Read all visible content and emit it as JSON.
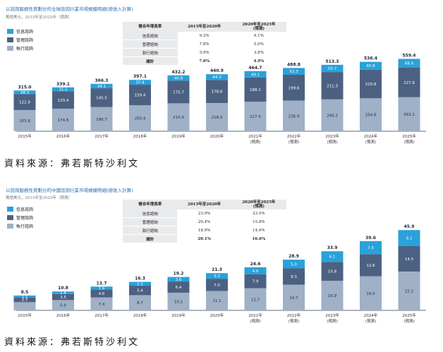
{
  "colors": {
    "info": "#2aa1da",
    "management": "#4c6182",
    "execution": "#9fb0c7",
    "title": "#2a6db0",
    "axis": "#5a6a80"
  },
  "legend": [
    "信息諮詢",
    "管理諮詢",
    "執行諮詢"
  ],
  "source_text": "資料來源：弗若斯特沙利文",
  "table_headers": [
    "複合年增長率",
    "2015年至2020年",
    "2020年至2025年\n(預測)"
  ],
  "chart_data": [
    {
      "type": "bar",
      "stacked": true,
      "title": "以諮詢服務性質劃分的全球諮詢行業市場規模明細(按收入計算)",
      "subtitle": "萬億美元，2015年至2025年（預測）",
      "categories": [
        "2015年",
        "2016年",
        "2017年",
        "2018年",
        "2019年",
        "2020年",
        "2021年\n(預測)",
        "2022年\n(預測)",
        "2023年\n(預測)",
        "2024年\n(預測)",
        "2025年\n(預測)"
      ],
      "series": [
        {
          "name": "執行諮詢",
          "values": [
            163.8,
            174.6,
            186.7,
            200.4,
            215.9,
            218.0,
            227.5,
            236.9,
            246.3,
            254.8,
            263.1
          ]
        },
        {
          "name": "管理諮詢",
          "values": [
            122.9,
            133.4,
            145.5,
            159.4,
            175.7,
            178.6,
            188.1,
            199.6,
            211.3,
            220.8,
            227.9
          ]
        },
        {
          "name": "信息諮詢",
          "values": [
            28.3,
            31.1,
            34.1,
            37.4,
            40.6,
            44.2,
            49.1,
            52.3,
            55.7,
            60.8,
            68.4
          ]
        }
      ],
      "totals": [
        "315.0",
        "339.1",
        "366.3",
        "397.1",
        "432.2",
        "440.9",
        "464.7",
        "488.8",
        "513.3",
        "536.4",
        "559.4"
      ],
      "labels": [
        [
          "163.8",
          "174.6",
          "186.7",
          "200.4",
          "215.9",
          "218.0",
          "227.5",
          "236.9",
          "246.3",
          "254.8",
          "263.1"
        ],
        [
          "122.9",
          "133.4",
          "145.5",
          "159.4",
          "175.7",
          "178.6",
          "188.1",
          "199.6",
          "211.3",
          "220.8",
          "227.9"
        ],
        [
          "28.3",
          "31.1",
          "34.1",
          "37.4",
          "40.6",
          "44.2",
          "49.1",
          "52.3",
          "55.7",
          "60.8",
          "68.4"
        ]
      ],
      "ylim": [
        0,
        600
      ],
      "cagr": [
        {
          "label": "信息諮詢",
          "a": "9.3%",
          "b": "9.1%"
        },
        {
          "label": "管理諮詢",
          "a": "7.8%",
          "b": "5.0%"
        },
        {
          "label": "執行諮詢",
          "a": "5.9%",
          "b": "3.8%"
        },
        {
          "label": "總計",
          "a": "7.0%",
          "b": "4.9%"
        }
      ]
    },
    {
      "type": "bar",
      "stacked": true,
      "title": "以諮詢服務性質劃分的中國諮詢行業市場規模明細(按收入計算)",
      "subtitle": "萬億美元，2015年至2025年（預測）",
      "categories": [
        "2015年",
        "2016年",
        "2017年",
        "2018年",
        "2019年",
        "2020年",
        "2021年\n(預測)",
        "2022年\n(預測)",
        "2023年\n(預測)",
        "2024年\n(預測)",
        "2025年\n(預測)"
      ],
      "series": [
        {
          "name": "執行諮詢",
          "values": [
            4.7,
            5.9,
            7.4,
            8.7,
            10.1,
            11.1,
            12.7,
            14.7,
            16.9,
            19.5,
            22.2
          ]
        },
        {
          "name": "管理諮詢",
          "values": [
            2.7,
            3.5,
            4.6,
            5.4,
            6.4,
            7.0,
            7.9,
            9.3,
            10.8,
            12.6,
            14.5
          ]
        },
        {
          "name": "信息諮詢",
          "values": [
            1.1,
            1.4,
            1.6,
            2.2,
            2.6,
            3.2,
            4.0,
            5.0,
            6.1,
            7.5,
            9.2
          ]
        }
      ],
      "totals": [
        "8.5",
        "10.8",
        "13.7",
        "16.3",
        "19.2",
        "21.3",
        "24.6",
        "28.9",
        "33.9",
        "39.6",
        "45.9"
      ],
      "labels": [
        [
          "",
          "5.9",
          "7.4",
          "8.7",
          "10.1",
          "11.1",
          "12.7",
          "14.7",
          "16.9",
          "19.5",
          "22.2"
        ],
        [
          "2.7",
          "3.5",
          "4.6",
          "5.4",
          "6.4",
          "7.0",
          "7.9",
          "9.3",
          "10.8",
          "12.6",
          "14.5"
        ],
        [
          "1.1",
          "1.4",
          "1.6",
          "2.2",
          "2.6",
          "3.2",
          "4.0",
          "5.0",
          "6.1",
          "7.5",
          "9.2"
        ]
      ],
      "ylim": [
        0,
        50
      ],
      "cagr": [
        {
          "label": "信息諮詢",
          "a": "23.9%",
          "b": "23.5%"
        },
        {
          "label": "管理諮詢",
          "a": "20.4%",
          "b": "15.8%"
        },
        {
          "label": "執行諮詢",
          "a": "18.9%",
          "b": "14.9%"
        },
        {
          "label": "總計",
          "a": "20.1%",
          "b": "16.6%"
        }
      ]
    }
  ]
}
